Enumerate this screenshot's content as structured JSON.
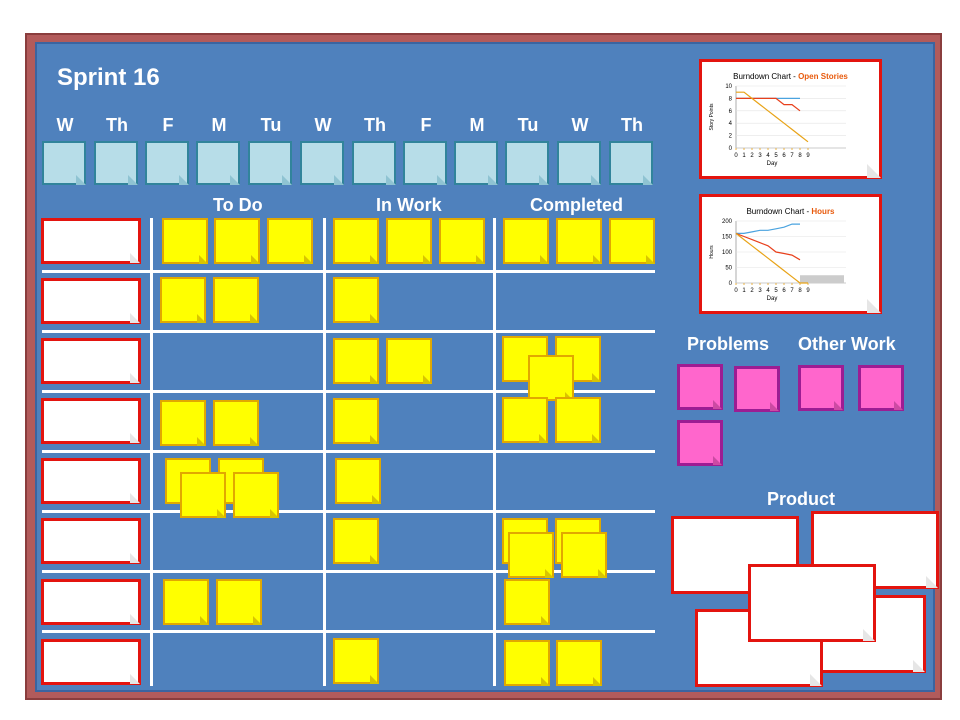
{
  "board": {
    "title": "Sprint 16",
    "days": [
      "W",
      "Th",
      "F",
      "M",
      "Tu",
      "W",
      "Th",
      "F",
      "M",
      "Tu",
      "W",
      "Th"
    ],
    "columns": {
      "todo": "To Do",
      "in_work": "In Work",
      "completed": "Completed"
    },
    "problems_label": "Problems",
    "other_work_label": "Other Work",
    "product_label": "Product"
  },
  "colors": {
    "board": "#4f81bd",
    "frame": "#b25b5b",
    "sticky_yellow": "#ffff00",
    "sticky_pink": "#ff66cc",
    "card_border": "#e3140f",
    "day_box": "#b7dde8"
  },
  "charts": [
    {
      "title": "Burndown Chart - ",
      "highlight": "Open Stories",
      "ylabel": "Story Points",
      "xlabel": "Day",
      "y_ticks": [
        "0",
        "2",
        "4",
        "6",
        "8",
        "10"
      ],
      "x_ticks": [
        "0",
        "1",
        "2",
        "3",
        "4",
        "5",
        "6",
        "7",
        "8",
        "9"
      ]
    },
    {
      "title": "Burndown Chart - ",
      "highlight": "Hours",
      "ylabel": "Hours",
      "xlabel": "Day",
      "y_ticks": [
        "0",
        "50",
        "100",
        "150",
        "200"
      ],
      "x_ticks": [
        "0",
        "1",
        "2",
        "3",
        "4",
        "5",
        "6",
        "7",
        "8",
        "9"
      ]
    }
  ],
  "chart_data": [
    {
      "type": "line",
      "title": "Burndown Chart - Open Stories",
      "xlabel": "Day",
      "ylabel": "Story Points",
      "ylim": [
        0,
        10
      ],
      "x": [
        0,
        1,
        2,
        3,
        4,
        5,
        6,
        7,
        8,
        9
      ],
      "series": [
        {
          "color": "#4aa3df",
          "values": [
            8,
            8,
            8,
            8,
            8,
            8,
            8,
            8,
            8,
            null
          ]
        },
        {
          "color": "#e8401c",
          "values": [
            8,
            8,
            8,
            8,
            8,
            8,
            7,
            7,
            6,
            null
          ]
        },
        {
          "color": "#e8a317",
          "values": [
            9,
            9,
            8,
            7,
            6,
            5,
            4,
            3,
            2,
            1
          ]
        }
      ]
    },
    {
      "type": "line",
      "title": "Burndown Chart - Hours",
      "xlabel": "Day",
      "ylabel": "Hours",
      "ylim": [
        0,
        200
      ],
      "x": [
        0,
        1,
        2,
        3,
        4,
        5,
        6,
        7,
        8,
        9
      ],
      "series": [
        {
          "color": "#4aa3df",
          "values": [
            160,
            160,
            165,
            170,
            170,
            175,
            180,
            190,
            190,
            null
          ]
        },
        {
          "color": "#e8401c",
          "values": [
            160,
            150,
            140,
            130,
            120,
            100,
            95,
            90,
            75,
            null
          ]
        },
        {
          "color": "#e8a317",
          "values": [
            160,
            140,
            120,
            100,
            80,
            60,
            40,
            20,
            0,
            0
          ]
        }
      ]
    }
  ]
}
